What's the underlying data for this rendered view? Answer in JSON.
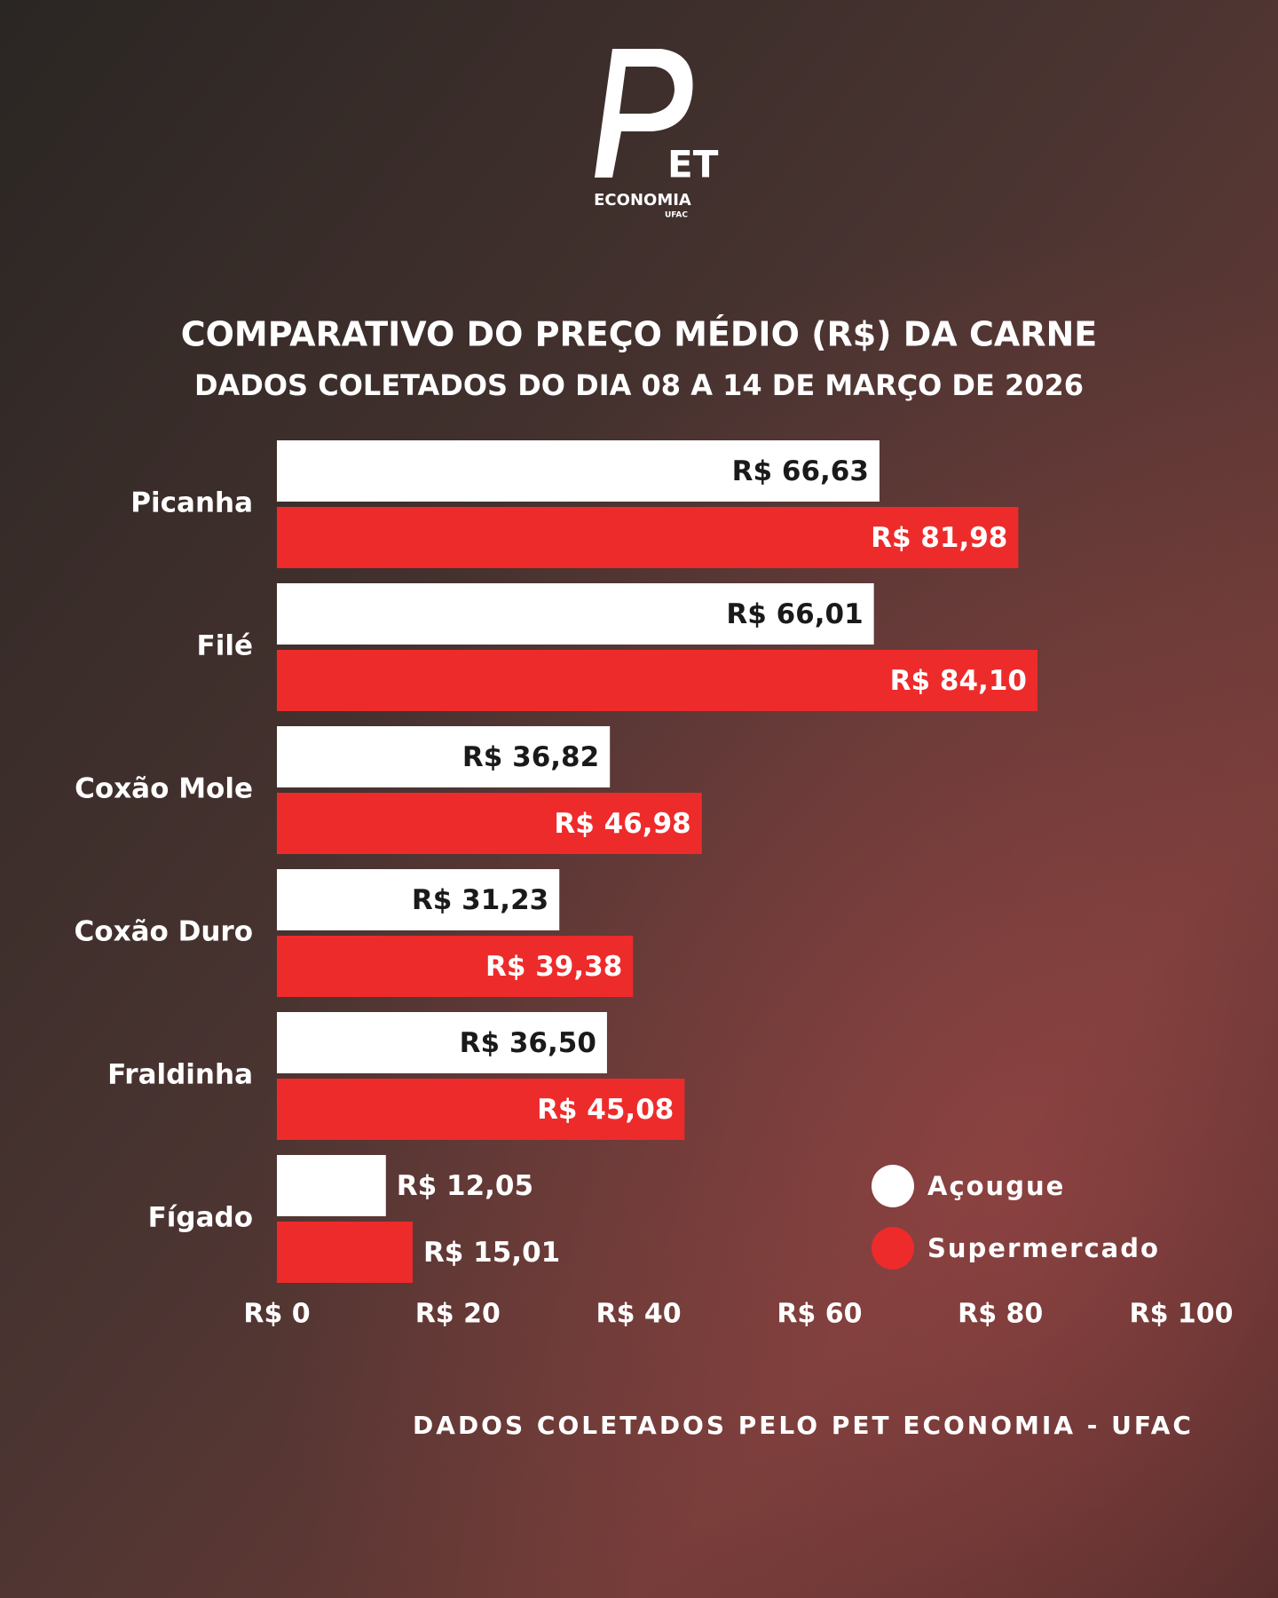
{
  "logo": {
    "mark": "ET",
    "name": "ECONOMIA",
    "org": "UFAC"
  },
  "chart_data": {
    "type": "barh",
    "title": "COMPARATIVO DO PREÇO MÉDIO (R$) DA CARNE",
    "subtitle": "DADOS COLETADOS DO DIA 08 A 14 DE MARÇO DE 2026",
    "categories": [
      "Picanha",
      "Filé",
      "Coxão Mole",
      "Coxão Duro",
      "Fraldinha",
      "Fígado"
    ],
    "series": [
      {
        "name": "Açougue",
        "color": "#ffffff",
        "label_color": "#1a1a1a",
        "values": [
          66.63,
          66.01,
          36.82,
          31.23,
          36.5,
          12.05
        ],
        "value_labels": [
          "R$ 66,63",
          "R$ 66,01",
          "R$ 36,82",
          "R$ 31,23",
          "R$ 36,50",
          "R$ 12,05"
        ]
      },
      {
        "name": "Supermercado",
        "color": "#ee2b2b",
        "label_color": "#ffffff",
        "values": [
          81.98,
          84.1,
          46.98,
          39.38,
          45.08,
          15.01
        ],
        "value_labels": [
          "R$ 81,98",
          "R$ 84,10",
          "R$ 46,98",
          "R$ 39,38",
          "R$ 45,08",
          "R$ 15,01"
        ]
      }
    ],
    "xlim": [
      0,
      100
    ],
    "xticks": [
      {
        "value": 0,
        "label": "R$ 0"
      },
      {
        "value": 20,
        "label": "R$ 20"
      },
      {
        "value": 40,
        "label": "R$ 40"
      },
      {
        "value": 60,
        "label": "R$ 60"
      },
      {
        "value": 80,
        "label": "R$ 80"
      },
      {
        "value": 100,
        "label": "R$ 100"
      }
    ],
    "legend": "lower-right",
    "footer": "DADOS COLETADOS PELO PET ECONOMIA - UFAC"
  }
}
